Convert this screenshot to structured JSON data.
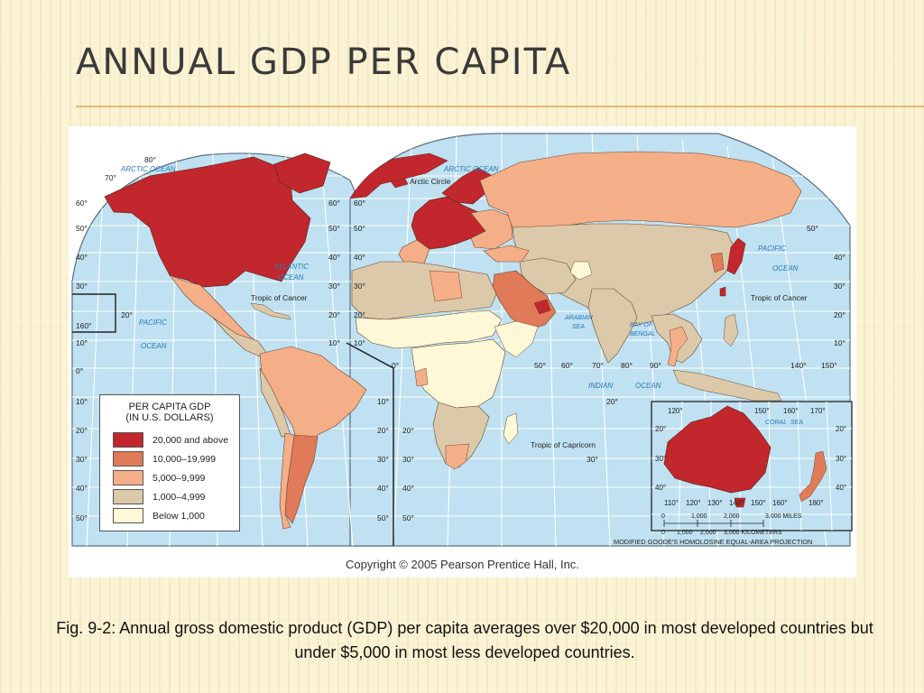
{
  "slide": {
    "title": "ANNUAL GDP PER CAPITA",
    "caption": "Fig. 9-2: Annual gross domestic product (GDP) per capita averages over $20,000 in most developed countries but under $5,000 in most less developed countries.",
    "accent_color": "#e4b877"
  },
  "map": {
    "copyright": "Copyright © 2005 Pearson Prentice Hall, Inc.",
    "projection": "MODIFIED GOODE'S HOMOLOSINE EQUAL-AREA PROJECTION",
    "legend": {
      "title_line1": "PER CAPITA GDP",
      "title_line2": "(IN U.S. DOLLARS)",
      "items": [
        {
          "label": "20,000 and above",
          "color": "#c1272d"
        },
        {
          "label": "10,000–19,999",
          "color": "#e07a58"
        },
        {
          "label": "5,000–9,999",
          "color": "#f4ae88"
        },
        {
          "label": "1,000–4,999",
          "color": "#dcc9a9"
        },
        {
          "label": "Below 1,000",
          "color": "#fff8d6"
        }
      ]
    },
    "ocean_labels": {
      "arctic_west": "ARCTIC OCEAN",
      "arctic_east": "ARCTIC OCEAN",
      "atlantic_1": "ATLANTIC",
      "atlantic_2": "OCEAN",
      "pacific_west_1": "PACIFIC",
      "pacific_west_2": "OCEAN",
      "pacific_east_1": "PACIFIC",
      "pacific_east_2": "OCEAN",
      "indian_1": "INDIAN",
      "indian_2": "OCEAN",
      "arabian_1": "ARABIAN",
      "arabian_2": "SEA",
      "bengal_1": "BAY OF",
      "bengal_2": "BENGAL",
      "coral_1": "CORAL",
      "coral_2": "SEA"
    },
    "lines": {
      "arctic_circle": "Arctic Circle",
      "tropic_cancer_west": "Tropic of Cancer",
      "tropic_cancer_east": "Tropic of Cancer",
      "tropic_capricorn": "Tropic of Capricorn"
    },
    "latitudes_left": [
      "80°",
      "70°",
      "60°",
      "50°",
      "40°",
      "30°",
      "20°",
      "10°",
      "0°",
      "10°",
      "20°",
      "30°",
      "40°",
      "50°"
    ],
    "latitudes_mid": [
      "60°",
      "50°",
      "40°",
      "30°",
      "20°",
      "10°",
      "10°",
      "20°",
      "30°",
      "40°",
      "50°"
    ],
    "latitudes_mid_right": [
      "60°",
      "50°",
      "40°",
      "30°",
      "20°",
      "10°",
      "20°",
      "30°",
      "40°",
      "50°"
    ],
    "latitudes_right": [
      "50°",
      "40°",
      "30°",
      "20°",
      "10°",
      "20°",
      "30°"
    ],
    "longitudes": [
      "160°",
      "20°",
      "0°",
      "50°",
      "60°",
      "70°",
      "80°",
      "90°",
      "140°",
      "150°"
    ],
    "inset_lon_top": [
      "120°",
      "150°",
      "160°",
      "170°"
    ],
    "inset_lon_bottom": [
      "110°",
      "120°",
      "130°",
      "140°",
      "150°",
      "160°",
      "180°"
    ],
    "inset_lat": [
      "20°",
      "30°",
      "40°",
      "20°",
      "30°",
      "40°"
    ],
    "scale": {
      "miles": [
        "0",
        "1,000",
        "2,000",
        "3,000 MILES"
      ],
      "km": [
        "0",
        "1,000",
        "2,000",
        "3,000 KILOMETERS"
      ]
    }
  }
}
